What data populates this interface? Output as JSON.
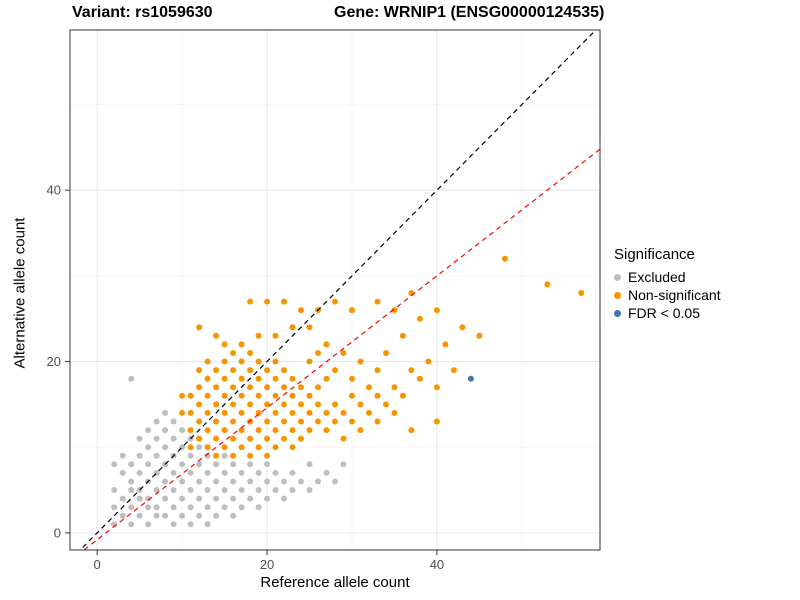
{
  "header": {
    "title_left": "Variant: rs1059630",
    "title_right": "Gene: WRNIP1 (ENSG00000124535)"
  },
  "chart_data": {
    "type": "scatter",
    "title": "Variant: rs1059630  Gene: WRNIP1 (ENSG00000124535)",
    "xlabel": "Reference allele count",
    "ylabel": "Alternative allele count",
    "xlim": [
      -3.2,
      59.2
    ],
    "ylim": [
      -2,
      58.7
    ],
    "x_ticks": [
      0,
      20,
      40
    ],
    "y_ticks": [
      0,
      20,
      40
    ],
    "x_minor": [
      10,
      30,
      50
    ],
    "y_minor": [
      10,
      30,
      50
    ],
    "grid": "major-and-minor",
    "legend": {
      "title": "Significance",
      "position": "right"
    },
    "reference_lines": [
      {
        "label": "identity",
        "slope": 1,
        "intercept": 0,
        "color": "#000000",
        "style": "dashed"
      },
      {
        "label": "regression",
        "slope": 0.77,
        "intercept": -0.8,
        "color": "#ff0000",
        "style": "dashed"
      }
    ],
    "series": [
      {
        "name": "Excluded",
        "color": "#bebebe",
        "points": [
          [
            2,
            1
          ],
          [
            2,
            3
          ],
          [
            2,
            5
          ],
          [
            2,
            8
          ],
          [
            3,
            2
          ],
          [
            3,
            4
          ],
          [
            3,
            7
          ],
          [
            3,
            9
          ],
          [
            4,
            1
          ],
          [
            4,
            3
          ],
          [
            4,
            5
          ],
          [
            4,
            6
          ],
          [
            4,
            8
          ],
          [
            4,
            18
          ],
          [
            5,
            2
          ],
          [
            5,
            4
          ],
          [
            5,
            5
          ],
          [
            5,
            7
          ],
          [
            5,
            9
          ],
          [
            5,
            11
          ],
          [
            6,
            1
          ],
          [
            6,
            3
          ],
          [
            6,
            4
          ],
          [
            6,
            6
          ],
          [
            6,
            8
          ],
          [
            6,
            10
          ],
          [
            6,
            12
          ],
          [
            7,
            2
          ],
          [
            7,
            3
          ],
          [
            7,
            5
          ],
          [
            7,
            7
          ],
          [
            7,
            9
          ],
          [
            7,
            11
          ],
          [
            7,
            13
          ],
          [
            8,
            2
          ],
          [
            8,
            4
          ],
          [
            8,
            6
          ],
          [
            8,
            8
          ],
          [
            8,
            10
          ],
          [
            8,
            12
          ],
          [
            8,
            14
          ],
          [
            9,
            1
          ],
          [
            9,
            3
          ],
          [
            9,
            5
          ],
          [
            9,
            7
          ],
          [
            9,
            9
          ],
          [
            9,
            11
          ],
          [
            9,
            13
          ],
          [
            10,
            2
          ],
          [
            10,
            4
          ],
          [
            10,
            6
          ],
          [
            10,
            8
          ],
          [
            10,
            10
          ],
          [
            10,
            12
          ],
          [
            11,
            1
          ],
          [
            11,
            3
          ],
          [
            11,
            5
          ],
          [
            11,
            7
          ],
          [
            11,
            9
          ],
          [
            11,
            11
          ],
          [
            12,
            2
          ],
          [
            12,
            4
          ],
          [
            12,
            6
          ],
          [
            12,
            8
          ],
          [
            12,
            10
          ],
          [
            13,
            1
          ],
          [
            13,
            3
          ],
          [
            13,
            5
          ],
          [
            13,
            7
          ],
          [
            13,
            9
          ],
          [
            14,
            2
          ],
          [
            14,
            4
          ],
          [
            14,
            6
          ],
          [
            14,
            8
          ],
          [
            15,
            3
          ],
          [
            15,
            5
          ],
          [
            15,
            7
          ],
          [
            15,
            9
          ],
          [
            16,
            2
          ],
          [
            16,
            4
          ],
          [
            16,
            6
          ],
          [
            16,
            8
          ],
          [
            17,
            3
          ],
          [
            17,
            5
          ],
          [
            17,
            7
          ],
          [
            18,
            4
          ],
          [
            18,
            6
          ],
          [
            18,
            8
          ],
          [
            19,
            3
          ],
          [
            19,
            5
          ],
          [
            19,
            7
          ],
          [
            20,
            4
          ],
          [
            20,
            6
          ],
          [
            20,
            8
          ],
          [
            21,
            5
          ],
          [
            21,
            7
          ],
          [
            22,
            4
          ],
          [
            22,
            6
          ],
          [
            23,
            5
          ],
          [
            23,
            7
          ],
          [
            24,
            6
          ],
          [
            25,
            5
          ],
          [
            25,
            8
          ],
          [
            26,
            6
          ],
          [
            27,
            7
          ],
          [
            28,
            6
          ],
          [
            29,
            8
          ]
        ]
      },
      {
        "name": "Non-significant",
        "color": "#f79500",
        "points": [
          [
            10,
            14
          ],
          [
            10,
            16
          ],
          [
            11,
            10
          ],
          [
            11,
            12
          ],
          [
            11,
            14
          ],
          [
            11,
            16
          ],
          [
            12,
            11
          ],
          [
            12,
            13
          ],
          [
            12,
            15
          ],
          [
            12,
            17
          ],
          [
            12,
            19
          ],
          [
            12,
            24
          ],
          [
            13,
            10
          ],
          [
            13,
            12
          ],
          [
            13,
            14
          ],
          [
            13,
            16
          ],
          [
            13,
            18
          ],
          [
            13,
            20
          ],
          [
            14,
            9
          ],
          [
            14,
            11
          ],
          [
            14,
            13
          ],
          [
            14,
            15
          ],
          [
            14,
            17
          ],
          [
            14,
            19
          ],
          [
            14,
            23
          ],
          [
            15,
            10
          ],
          [
            15,
            12
          ],
          [
            15,
            14
          ],
          [
            15,
            16
          ],
          [
            15,
            18
          ],
          [
            15,
            20
          ],
          [
            15,
            22
          ],
          [
            16,
            9
          ],
          [
            16,
            11
          ],
          [
            16,
            13
          ],
          [
            16,
            15
          ],
          [
            16,
            17
          ],
          [
            16,
            19
          ],
          [
            16,
            21
          ],
          [
            17,
            10
          ],
          [
            17,
            12
          ],
          [
            17,
            14
          ],
          [
            17,
            16
          ],
          [
            17,
            18
          ],
          [
            17,
            20
          ],
          [
            17,
            22
          ],
          [
            18,
            9
          ],
          [
            18,
            11
          ],
          [
            18,
            13
          ],
          [
            18,
            15
          ],
          [
            18,
            17
          ],
          [
            18,
            19
          ],
          [
            18,
            21
          ],
          [
            18,
            27
          ],
          [
            19,
            10
          ],
          [
            19,
            12
          ],
          [
            19,
            14
          ],
          [
            19,
            16
          ],
          [
            19,
            18
          ],
          [
            19,
            20
          ],
          [
            19,
            23
          ],
          [
            20,
            9
          ],
          [
            20,
            11
          ],
          [
            20,
            13
          ],
          [
            20,
            15
          ],
          [
            20,
            17
          ],
          [
            20,
            19
          ],
          [
            20,
            27
          ],
          [
            21,
            10
          ],
          [
            21,
            12
          ],
          [
            21,
            14
          ],
          [
            21,
            16
          ],
          [
            21,
            18
          ],
          [
            21,
            20
          ],
          [
            21,
            23
          ],
          [
            22,
            11
          ],
          [
            22,
            13
          ],
          [
            22,
            15
          ],
          [
            22,
            17
          ],
          [
            22,
            19
          ],
          [
            22,
            27
          ],
          [
            23,
            10
          ],
          [
            23,
            12
          ],
          [
            23,
            14
          ],
          [
            23,
            16
          ],
          [
            23,
            18
          ],
          [
            23,
            24
          ],
          [
            24,
            11
          ],
          [
            24,
            13
          ],
          [
            24,
            15
          ],
          [
            24,
            17
          ],
          [
            24,
            26
          ],
          [
            25,
            12
          ],
          [
            25,
            14
          ],
          [
            25,
            16
          ],
          [
            25,
            20
          ],
          [
            25,
            24
          ],
          [
            26,
            13
          ],
          [
            26,
            15
          ],
          [
            26,
            17
          ],
          [
            26,
            21
          ],
          [
            26,
            26
          ],
          [
            27,
            12
          ],
          [
            27,
            14
          ],
          [
            27,
            18
          ],
          [
            27,
            22
          ],
          [
            28,
            13
          ],
          [
            28,
            15
          ],
          [
            28,
            19
          ],
          [
            28,
            27
          ],
          [
            29,
            11
          ],
          [
            29,
            14
          ],
          [
            29,
            21
          ],
          [
            30,
            13
          ],
          [
            30,
            16
          ],
          [
            30,
            18
          ],
          [
            30,
            26
          ],
          [
            31,
            12
          ],
          [
            31,
            15
          ],
          [
            31,
            20
          ],
          [
            32,
            14
          ],
          [
            32,
            17
          ],
          [
            33,
            13
          ],
          [
            33,
            16
          ],
          [
            33,
            19
          ],
          [
            33,
            27
          ],
          [
            34,
            15
          ],
          [
            34,
            21
          ],
          [
            35,
            14
          ],
          [
            35,
            17
          ],
          [
            35,
            26
          ],
          [
            36,
            16
          ],
          [
            36,
            23
          ],
          [
            37,
            12
          ],
          [
            37,
            19
          ],
          [
            37,
            28
          ],
          [
            38,
            18
          ],
          [
            38,
            25
          ],
          [
            39,
            20
          ],
          [
            40,
            13
          ],
          [
            40,
            17
          ],
          [
            40,
            26
          ],
          [
            41,
            22
          ],
          [
            42,
            19
          ],
          [
            43,
            24
          ],
          [
            45,
            23
          ],
          [
            48,
            32
          ],
          [
            53,
            29
          ],
          [
            57,
            28
          ]
        ]
      },
      {
        "name": "FDR < 0.05",
        "color": "#4575b4",
        "points": [
          [
            44,
            18
          ]
        ]
      }
    ]
  }
}
